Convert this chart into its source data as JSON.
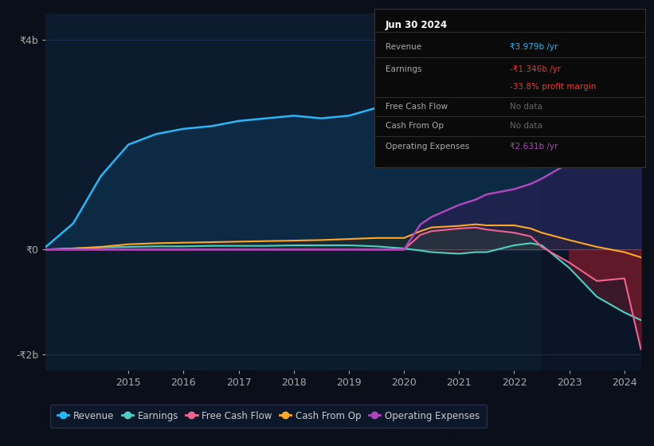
{
  "bg_color": "#0b0f1a",
  "plot_bg_color": "#0d1b2e",
  "grid_color": "#1e3a5f",
  "years": [
    2013.5,
    2014.0,
    2014.5,
    2015.0,
    2015.5,
    2016.0,
    2016.5,
    2017.0,
    2017.5,
    2018.0,
    2018.5,
    2019.0,
    2019.5,
    2020.0,
    2020.3,
    2020.5,
    2021.0,
    2021.3,
    2021.5,
    2022.0,
    2022.3,
    2022.5,
    2023.0,
    2023.5,
    2024.0,
    2024.3
  ],
  "revenue": [
    0.05,
    0.5,
    1.4,
    2.0,
    2.2,
    2.3,
    2.35,
    2.45,
    2.5,
    2.55,
    2.5,
    2.55,
    2.7,
    3.1,
    3.55,
    3.6,
    3.35,
    3.15,
    3.0,
    3.45,
    3.55,
    3.5,
    3.35,
    3.45,
    3.75,
    3.979
  ],
  "earnings": [
    0.0,
    0.02,
    0.04,
    0.05,
    0.06,
    0.06,
    0.07,
    0.07,
    0.07,
    0.08,
    0.08,
    0.08,
    0.06,
    0.02,
    -0.02,
    -0.05,
    -0.08,
    -0.05,
    -0.05,
    0.08,
    0.12,
    0.08,
    -0.35,
    -0.9,
    -1.2,
    -1.346
  ],
  "free_cash_flow": [
    0.0,
    0.0,
    0.0,
    0.0,
    0.0,
    0.0,
    0.0,
    0.0,
    0.0,
    0.0,
    0.0,
    0.0,
    0.0,
    0.0,
    0.28,
    0.35,
    0.4,
    0.42,
    0.38,
    0.32,
    0.25,
    0.05,
    -0.25,
    -0.6,
    -0.55,
    -1.9
  ],
  "cash_from_op": [
    0.0,
    0.02,
    0.05,
    0.1,
    0.12,
    0.13,
    0.14,
    0.15,
    0.16,
    0.17,
    0.18,
    0.2,
    0.22,
    0.22,
    0.35,
    0.42,
    0.45,
    0.48,
    0.46,
    0.46,
    0.4,
    0.32,
    0.18,
    0.05,
    -0.05,
    -0.15
  ],
  "op_expenses": [
    0.0,
    0.0,
    0.0,
    0.0,
    0.0,
    0.0,
    0.0,
    0.0,
    0.0,
    0.0,
    0.0,
    0.0,
    0.0,
    0.0,
    0.48,
    0.62,
    0.85,
    0.95,
    1.05,
    1.15,
    1.25,
    1.35,
    1.65,
    2.0,
    2.4,
    2.631
  ],
  "revenue_color": "#29b6f6",
  "earnings_color": "#4dd0c4",
  "free_cash_flow_color": "#f06292",
  "cash_from_op_color": "#ffa726",
  "op_expenses_color": "#ab47bc",
  "revenue_fill": "#0d3a5c",
  "earnings_pos_fill": "#1a4a3a",
  "earnings_neg_fill": "#5a1a2a",
  "free_cash_flow_pos_fill": "#2a4a3a",
  "free_cash_flow_neg_fill": "#7a1a2a",
  "cash_from_op_fill": "#3a2a08",
  "op_expenses_fill": "#3a1a5c",
  "ylim": [
    -2.3,
    4.5
  ],
  "ytick_vals": [
    -2.0,
    0.0,
    4.0
  ],
  "ytick_labels": [
    "-₹2b",
    "₹0",
    "₹4b"
  ],
  "xtick_years": [
    2015,
    2016,
    2017,
    2018,
    2019,
    2020,
    2021,
    2022,
    2023,
    2024
  ],
  "shade_start": 2022.5,
  "legend_items": [
    {
      "label": "Revenue",
      "color": "#29b6f6"
    },
    {
      "label": "Earnings",
      "color": "#4dd0c4"
    },
    {
      "label": "Free Cash Flow",
      "color": "#f06292"
    },
    {
      "label": "Cash From Op",
      "color": "#ffa726"
    },
    {
      "label": "Operating Expenses",
      "color": "#ab47bc"
    }
  ],
  "tooltip": {
    "title": "Jun 30 2024",
    "rows": [
      {
        "label": "Revenue",
        "value": "₹3.979b /yr",
        "value_color": "#29b6f6",
        "extra": null,
        "extra_color": null
      },
      {
        "label": "Earnings",
        "value": "-₹1.346b /yr",
        "value_color": "#e53935",
        "extra": "-33.8% profit margin",
        "extra_color": "#e53935"
      },
      {
        "label": "Free Cash Flow",
        "value": "No data",
        "value_color": "#666666",
        "extra": null,
        "extra_color": null
      },
      {
        "label": "Cash From Op",
        "value": "No data",
        "value_color": "#666666",
        "extra": null,
        "extra_color": null
      },
      {
        "label": "Operating Expenses",
        "value": "₹2.631b /yr",
        "value_color": "#ab47bc",
        "extra": null,
        "extra_color": null
      }
    ]
  }
}
